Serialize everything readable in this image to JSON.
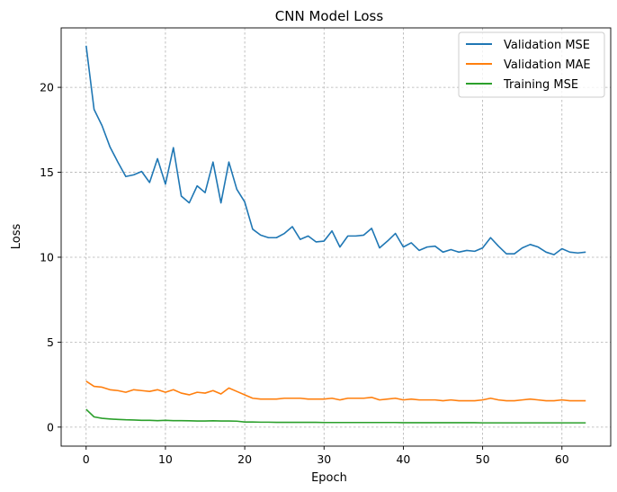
{
  "chart_data": {
    "type": "line",
    "title": "CNN Model Loss",
    "xlabel": "Epoch",
    "ylabel": "Loss",
    "xlim": [
      -3.15,
      66.15
    ],
    "ylim": [
      -1.12,
      23.5
    ],
    "xticks": [
      0,
      10,
      20,
      30,
      40,
      50,
      60
    ],
    "yticks": [
      0,
      5,
      10,
      15,
      20
    ],
    "grid": true,
    "legend_position": "top-right",
    "x": [
      0,
      1,
      2,
      3,
      4,
      5,
      6,
      7,
      8,
      9,
      10,
      11,
      12,
      13,
      14,
      15,
      16,
      17,
      18,
      19,
      20,
      21,
      22,
      23,
      24,
      25,
      26,
      27,
      28,
      29,
      30,
      31,
      32,
      33,
      34,
      35,
      36,
      37,
      38,
      39,
      40,
      41,
      42,
      43,
      44,
      45,
      46,
      47,
      48,
      49,
      50,
      51,
      52,
      53,
      54,
      55,
      56,
      57,
      58,
      59,
      60,
      61,
      62,
      63
    ],
    "series": [
      {
        "name": "Validation MSE",
        "color": "#1f77b4",
        "values": [
          22.45,
          18.7,
          17.75,
          16.5,
          15.6,
          14.75,
          14.85,
          15.05,
          14.4,
          15.8,
          14.3,
          16.45,
          13.6,
          13.2,
          14.2,
          13.8,
          15.6,
          13.2,
          15.6,
          14.0,
          13.25,
          11.65,
          11.3,
          11.15,
          11.15,
          11.4,
          11.8,
          11.05,
          11.25,
          10.9,
          10.95,
          11.55,
          10.6,
          11.25,
          11.25,
          11.3,
          11.7,
          10.55,
          10.95,
          11.4,
          10.6,
          10.85,
          10.4,
          10.6,
          10.65,
          10.3,
          10.45,
          10.3,
          10.4,
          10.35,
          10.55,
          11.15,
          10.65,
          10.2,
          10.2,
          10.55,
          10.75,
          10.6,
          10.3,
          10.15,
          10.5,
          10.3,
          10.25,
          10.3
        ]
      },
      {
        "name": "Validation MAE",
        "color": "#ff7f0e",
        "values": [
          2.7,
          2.4,
          2.35,
          2.2,
          2.15,
          2.05,
          2.2,
          2.15,
          2.1,
          2.2,
          2.05,
          2.2,
          2.0,
          1.9,
          2.05,
          2.0,
          2.15,
          1.95,
          2.3,
          2.1,
          1.9,
          1.7,
          1.65,
          1.65,
          1.65,
          1.7,
          1.7,
          1.7,
          1.65,
          1.65,
          1.65,
          1.7,
          1.6,
          1.7,
          1.7,
          1.7,
          1.75,
          1.6,
          1.65,
          1.7,
          1.6,
          1.65,
          1.6,
          1.6,
          1.6,
          1.55,
          1.6,
          1.55,
          1.55,
          1.55,
          1.6,
          1.7,
          1.6,
          1.55,
          1.55,
          1.6,
          1.65,
          1.6,
          1.55,
          1.55,
          1.6,
          1.55,
          1.55,
          1.55
        ]
      },
      {
        "name": "Training MSE",
        "color": "#2ca02c",
        "values": [
          1.05,
          0.6,
          0.52,
          0.48,
          0.45,
          0.43,
          0.42,
          0.4,
          0.4,
          0.38,
          0.4,
          0.38,
          0.38,
          0.37,
          0.36,
          0.36,
          0.37,
          0.36,
          0.36,
          0.35,
          0.3,
          0.3,
          0.29,
          0.29,
          0.28,
          0.28,
          0.28,
          0.28,
          0.28,
          0.28,
          0.27,
          0.27,
          0.27,
          0.27,
          0.27,
          0.27,
          0.27,
          0.27,
          0.27,
          0.27,
          0.26,
          0.26,
          0.26,
          0.26,
          0.26,
          0.26,
          0.26,
          0.26,
          0.26,
          0.26,
          0.25,
          0.25,
          0.25,
          0.25,
          0.25,
          0.25,
          0.25,
          0.25,
          0.25,
          0.25,
          0.25,
          0.25,
          0.25,
          0.25
        ]
      }
    ]
  }
}
